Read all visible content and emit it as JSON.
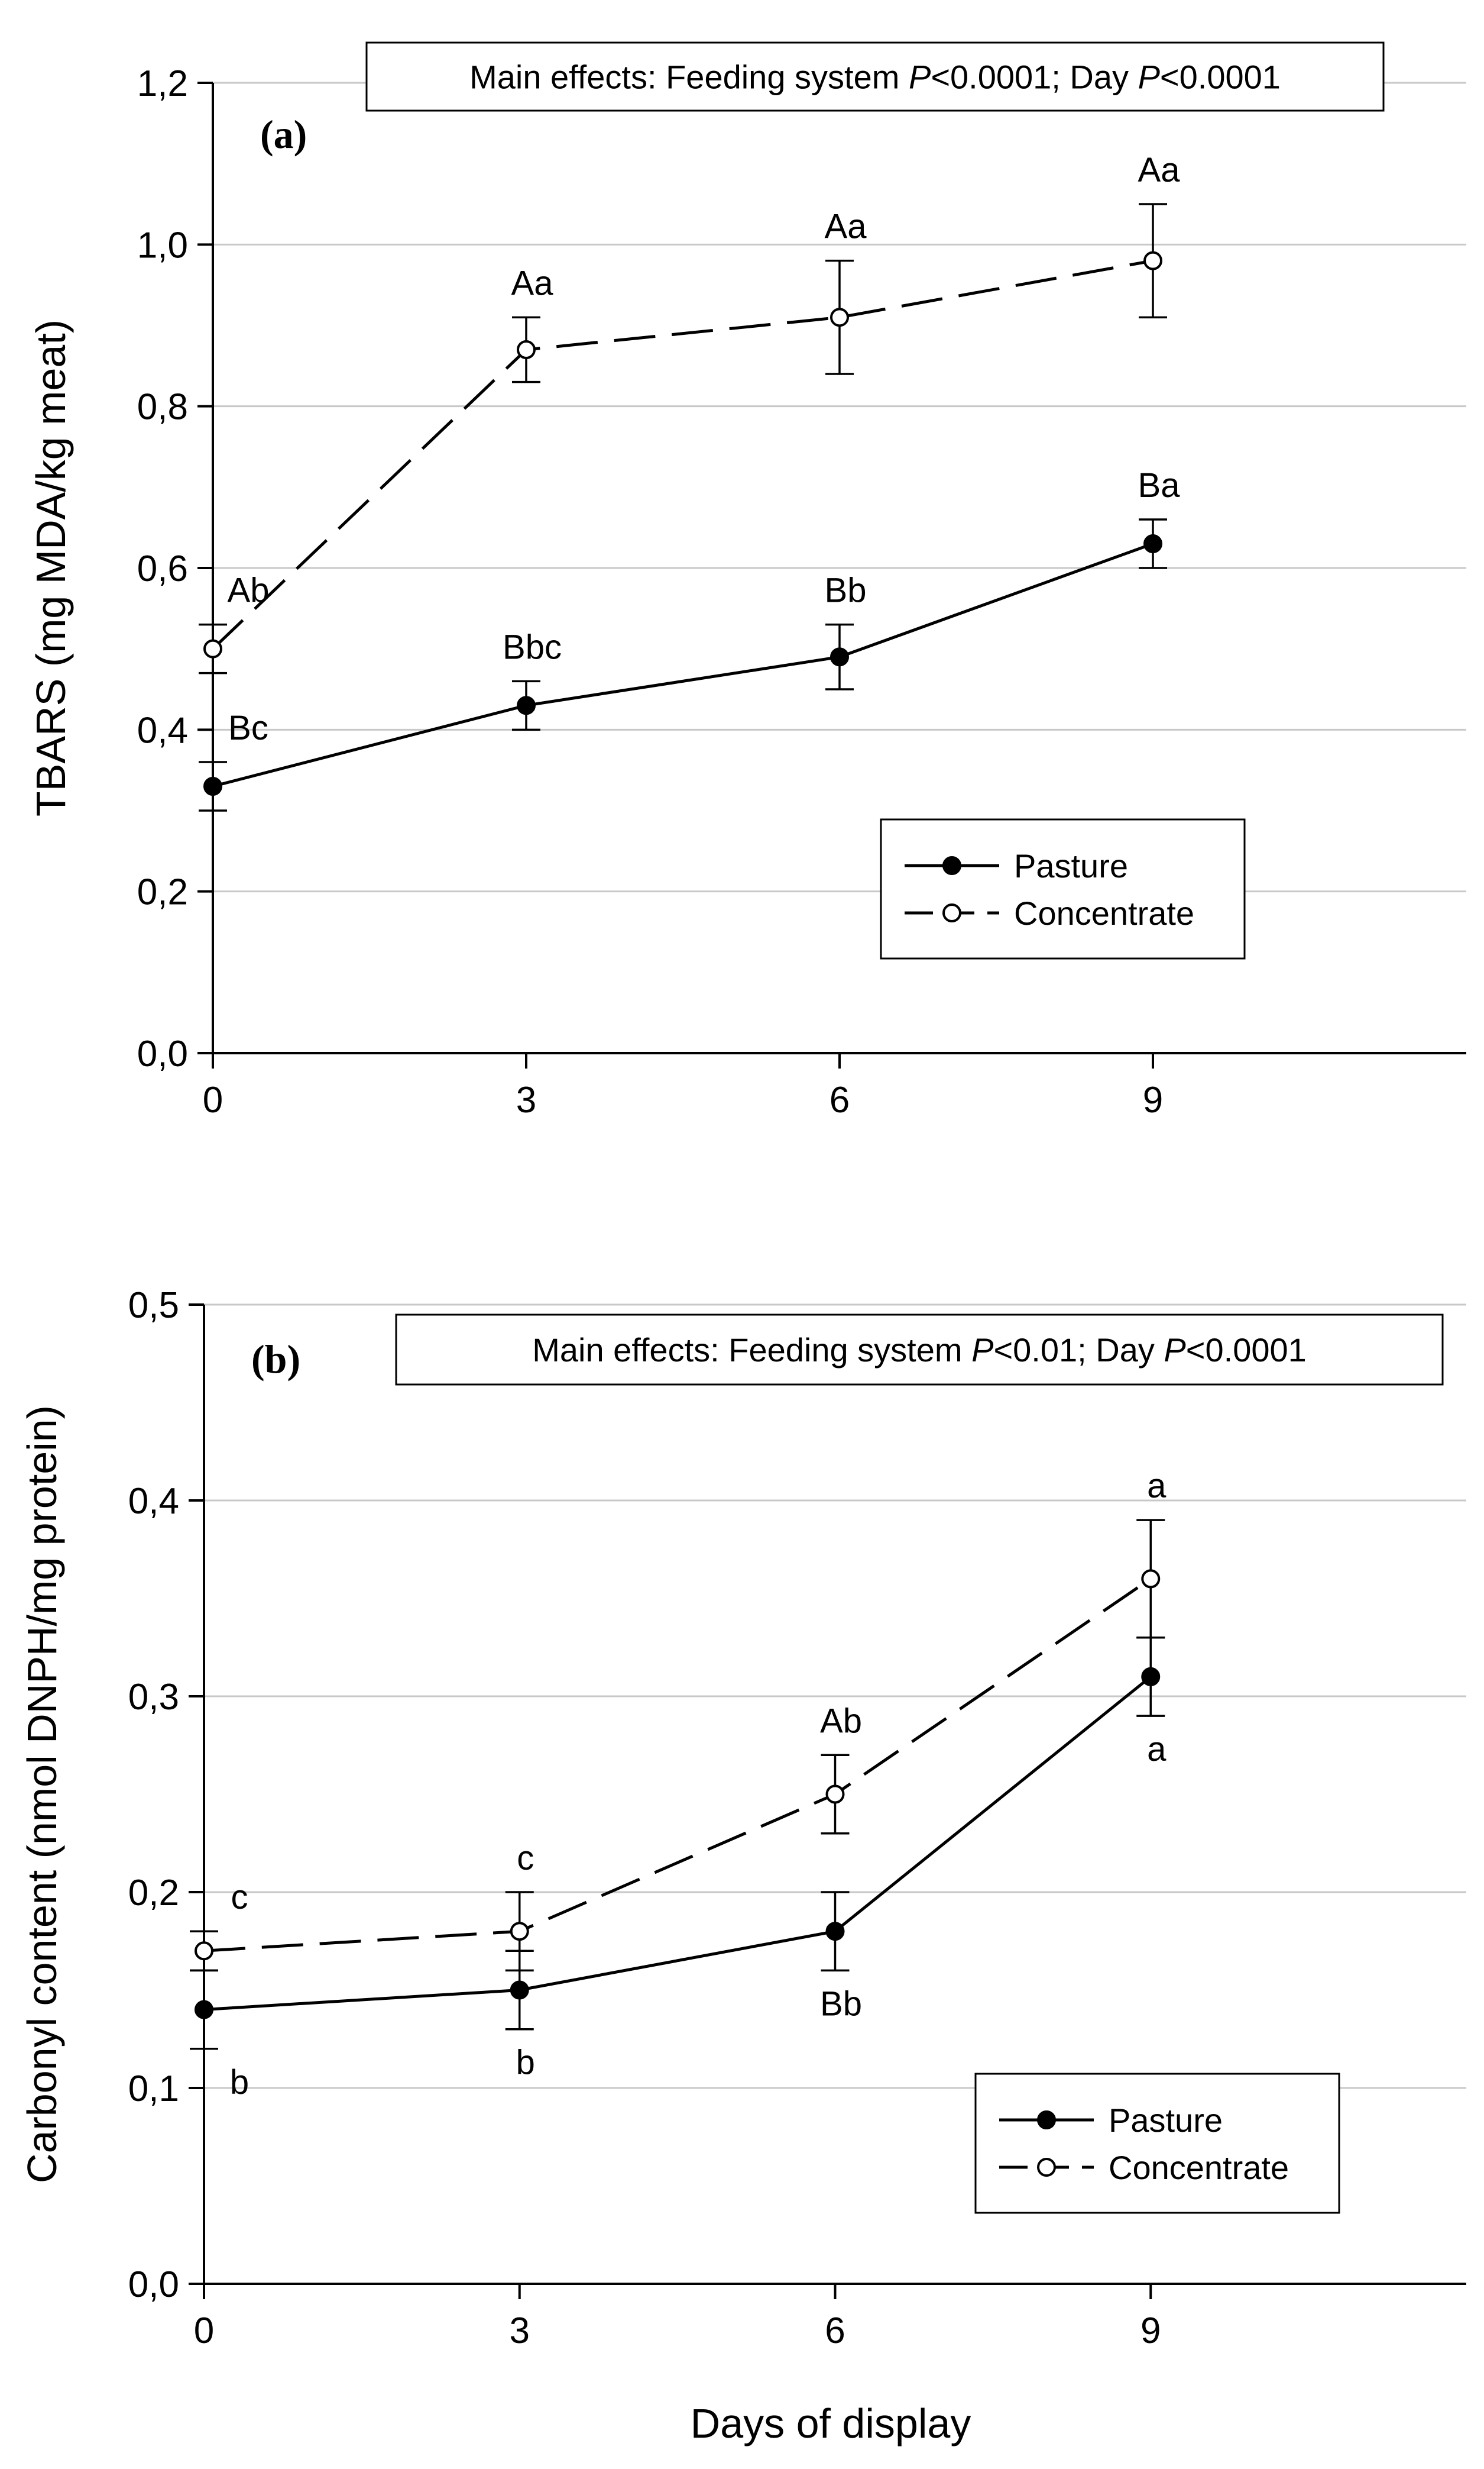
{
  "figure": {
    "shared_xlabel": "Days of display"
  },
  "chart_data": [
    {
      "type": "line",
      "panel_label": "(a)",
      "ylabel": "TBARS (mg MDA/kg meat)",
      "note_parts": [
        "Main effects: Feeding system ",
        "P",
        "<0.0001; Day ",
        "P",
        "<0.0001"
      ],
      "x": [
        0,
        3,
        6,
        9
      ],
      "xticks": [
        "0",
        "3",
        "6",
        "9"
      ],
      "xlim": [
        0,
        12
      ],
      "ylim": [
        0,
        1.2
      ],
      "yticks": [
        "0,0",
        "0,2",
        "0,4",
        "0,6",
        "0,8",
        "1,0",
        "1,2"
      ],
      "grid": "horizontal",
      "legend_position": "lower-right",
      "series": [
        {
          "name": "Pasture",
          "marker": "filled-circle",
          "line": "solid",
          "values": [
            0.33,
            0.43,
            0.49,
            0.63
          ],
          "errors": [
            0.03,
            0.03,
            0.04,
            0.03
          ],
          "labels": [
            "Bc",
            "Bbc",
            "Bb",
            "Ba"
          ],
          "label_side": [
            "above",
            "above",
            "above",
            "above"
          ]
        },
        {
          "name": "Concentrate",
          "marker": "open-circle",
          "line": "dashed",
          "values": [
            0.5,
            0.87,
            0.91,
            0.98
          ],
          "errors": [
            0.03,
            0.04,
            0.07,
            0.07
          ],
          "labels": [
            "Ab",
            "Aa",
            "Aa",
            "Aa"
          ],
          "label_side": [
            "above",
            "above",
            "above",
            "above"
          ]
        }
      ]
    },
    {
      "type": "line",
      "panel_label": "(b)",
      "ylabel": "Carbonyl content (nmol DNPH/mg protein)",
      "xlabel": "Days of display",
      "note_parts": [
        "Main effects: Feeding system ",
        "P",
        "<0.01; Day ",
        "P",
        "<0.0001"
      ],
      "x": [
        0,
        3,
        6,
        9
      ],
      "xticks": [
        "0",
        "3",
        "6",
        "9"
      ],
      "xlim": [
        0,
        12
      ],
      "ylim": [
        0,
        0.5
      ],
      "yticks": [
        "0,0",
        "0,1",
        "0,2",
        "0,3",
        "0,4",
        "0,5"
      ],
      "grid": "horizontal",
      "legend_position": "lower-right",
      "series": [
        {
          "name": "Pasture",
          "marker": "filled-circle",
          "line": "solid",
          "values": [
            0.14,
            0.15,
            0.18,
            0.31
          ],
          "errors": [
            0.02,
            0.02,
            0.02,
            0.02
          ],
          "labels": [
            "b",
            "b",
            "Bb",
            "a"
          ],
          "label_side": [
            "below",
            "below",
            "below",
            "below"
          ]
        },
        {
          "name": "Concentrate",
          "marker": "open-circle",
          "line": "dashed",
          "values": [
            0.17,
            0.18,
            0.25,
            0.36
          ],
          "errors": [
            0.01,
            0.02,
            0.02,
            0.03
          ],
          "labels": [
            "c",
            "c",
            "Ab",
            "a"
          ],
          "label_side": [
            "above",
            "above",
            "above",
            "above"
          ]
        }
      ]
    }
  ]
}
